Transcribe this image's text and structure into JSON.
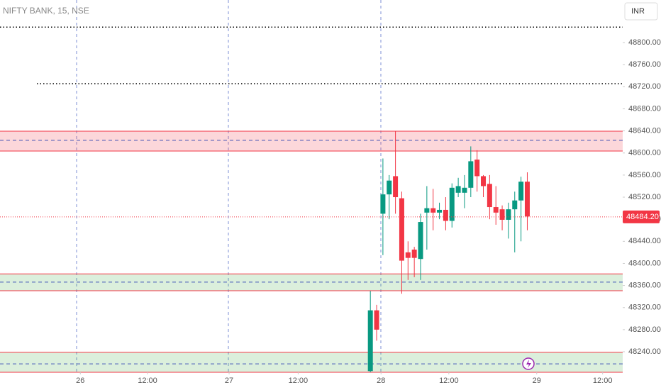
{
  "chart_data": {
    "type": "candlestick",
    "title": "NIFTY BANK, 15, NSE",
    "currency": "INR",
    "up_color": "#089981",
    "down_color": "#f23645",
    "xlim": [
      0,
      99.2
    ],
    "ylim": [
      48202.8,
      48877.1
    ],
    "xticks": [
      {
        "value": 12.8,
        "label": "26"
      },
      {
        "value": 23.5,
        "label": "12:00"
      },
      {
        "value": 36.5,
        "label": "27"
      },
      {
        "value": 47.5,
        "label": "12:00"
      },
      {
        "value": 60.7,
        "label": "28"
      },
      {
        "value": 71.5,
        "label": "12:00"
      },
      {
        "value": 85.5,
        "label": "29"
      },
      {
        "value": 96,
        "label": "12:00"
      }
    ],
    "yticks": [
      {
        "value": 48240,
        "label": "48240.00"
      },
      {
        "value": 48280,
        "label": "48280.00"
      },
      {
        "value": 48320,
        "label": "48320.00"
      },
      {
        "value": 48360,
        "label": "48360.00"
      },
      {
        "value": 48400,
        "label": "48400.00"
      },
      {
        "value": 48440,
        "label": "48440.00"
      },
      {
        "value": 48480,
        "label": "48480.00"
      },
      {
        "value": 48520,
        "label": "48520.00"
      },
      {
        "value": 48560,
        "label": "48560.00"
      },
      {
        "value": 48600,
        "label": "48600.00"
      },
      {
        "value": 48640,
        "label": "48640.00"
      },
      {
        "value": 48680,
        "label": "48680.00"
      },
      {
        "value": 48720,
        "label": "48720.00"
      },
      {
        "value": 48760,
        "label": "48760.00"
      },
      {
        "value": 48800,
        "label": "48800.00"
      }
    ],
    "x": [
      59,
      60,
      61,
      62,
      63,
      64,
      65,
      66,
      67,
      68,
      69,
      70,
      71,
      72,
      73,
      74,
      75,
      76,
      77,
      78,
      79,
      80,
      81,
      82,
      83,
      84
    ],
    "open": [
      48205,
      48315,
      48490,
      48525,
      48558,
      48518,
      48420,
      48425,
      48408,
      48492,
      48500,
      48492,
      48497,
      48477,
      48528,
      48528,
      48537,
      48588,
      48558,
      48544,
      48502,
      48498,
      48479,
      48498,
      48514,
      48548
    ],
    "high": [
      48350,
      48325,
      48590,
      48560,
      48640,
      48530,
      48440,
      48430,
      48490,
      48540,
      48535,
      48510,
      48520,
      48545,
      48555,
      48560,
      48612,
      48605,
      48560,
      48560,
      48540,
      48505,
      48510,
      48530,
      48557,
      48565
    ],
    "low": [
      48203,
      48260,
      48415,
      48480,
      48490,
      48345,
      48370,
      48375,
      48370,
      48425,
      48460,
      48480,
      48460,
      48465,
      48520,
      48500,
      48520,
      48530,
      48520,
      48480,
      48470,
      48460,
      48445,
      48420,
      48440,
      48460
    ],
    "close": [
      48315,
      48280,
      48525,
      48550,
      48520,
      48405,
      48410,
      48410,
      48475,
      48500,
      48492,
      48497,
      48477,
      48537,
      48540,
      48537,
      48585,
      48558,
      48540,
      48502,
      48492,
      48479,
      48498,
      48514,
      48548,
      48485
    ],
    "zones": [
      {
        "low": 48603.5,
        "high": 48639.5,
        "mid": 48623,
        "fill": "rgba(242,54,69,0.2)",
        "edge": "#f23645"
      },
      {
        "low": 48350.5,
        "high": 48381,
        "mid": 48366,
        "fill": "rgba(76,175,80,0.2)",
        "edge": "#f23645"
      },
      {
        "low": 48202.8,
        "high": 48239,
        "mid": 48218,
        "fill": "rgba(76,175,80,0.2)",
        "edge": "#f23645"
      }
    ],
    "levels": [
      48828,
      48725.5
    ],
    "last_price": {
      "value": 48484.2,
      "label": "48484.20"
    }
  }
}
